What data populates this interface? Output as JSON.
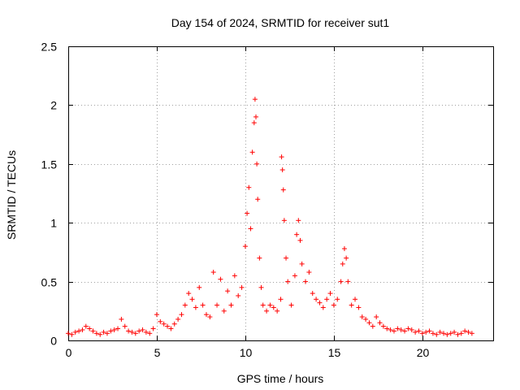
{
  "chart_data": {
    "type": "scatter",
    "title": "Day 154 of 2024, SRMTID for receiver sut1",
    "xlabel": "GPS time / hours",
    "ylabel": "SRMTID / TECUs",
    "xlim": [
      0,
      24
    ],
    "ylim": [
      0,
      2.5
    ],
    "x_ticks": [
      0,
      5,
      10,
      15,
      20
    ],
    "x_tick_labels": [
      "0",
      "5",
      "10",
      "15",
      "20"
    ],
    "y_ticks": [
      0,
      0.5,
      1,
      1.5,
      2,
      2.5
    ],
    "y_tick_labels": [
      "0",
      "0.5",
      "1",
      "1.5",
      "2",
      "2.5"
    ],
    "grid": true,
    "marker": "+",
    "color": "#ff0000",
    "series": [
      {
        "name": "SRMTID",
        "x": [
          0.0,
          0.2,
          0.4,
          0.6,
          0.8,
          1.0,
          1.2,
          1.4,
          1.6,
          1.8,
          2.0,
          2.2,
          2.4,
          2.6,
          2.8,
          3.0,
          3.2,
          3.4,
          3.6,
          3.8,
          4.0,
          4.2,
          4.4,
          4.6,
          4.8,
          5.0,
          5.2,
          5.4,
          5.6,
          5.8,
          6.0,
          6.2,
          6.4,
          6.6,
          6.8,
          7.0,
          7.2,
          7.4,
          7.6,
          7.8,
          8.0,
          8.2,
          8.4,
          8.6,
          8.8,
          9.0,
          9.2,
          9.4,
          9.6,
          9.8,
          10.0,
          10.1,
          10.2,
          10.3,
          10.4,
          10.5,
          10.55,
          10.6,
          10.65,
          10.7,
          10.8,
          10.9,
          11.0,
          11.2,
          11.4,
          11.6,
          11.8,
          12.0,
          12.05,
          12.1,
          12.15,
          12.2,
          12.3,
          12.4,
          12.6,
          12.8,
          12.9,
          13.0,
          13.1,
          13.2,
          13.4,
          13.6,
          13.8,
          14.0,
          14.2,
          14.4,
          14.6,
          14.8,
          15.0,
          15.2,
          15.4,
          15.5,
          15.6,
          15.7,
          15.8,
          16.0,
          16.2,
          16.4,
          16.6,
          16.8,
          17.0,
          17.2,
          17.4,
          17.6,
          17.8,
          18.0,
          18.2,
          18.4,
          18.6,
          18.8,
          19.0,
          19.2,
          19.4,
          19.6,
          19.8,
          20.0,
          20.2,
          20.4,
          20.6,
          20.8,
          21.0,
          21.2,
          21.4,
          21.6,
          21.8,
          22.0,
          22.2,
          22.4,
          22.6,
          22.8
        ],
        "y": [
          0.06,
          0.05,
          0.07,
          0.08,
          0.09,
          0.12,
          0.1,
          0.08,
          0.06,
          0.05,
          0.07,
          0.06,
          0.08,
          0.09,
          0.1,
          0.18,
          0.12,
          0.08,
          0.07,
          0.06,
          0.08,
          0.09,
          0.07,
          0.06,
          0.1,
          0.22,
          0.16,
          0.14,
          0.12,
          0.1,
          0.14,
          0.18,
          0.22,
          0.3,
          0.4,
          0.35,
          0.28,
          0.45,
          0.3,
          0.22,
          0.2,
          0.58,
          0.3,
          0.52,
          0.25,
          0.42,
          0.3,
          0.55,
          0.38,
          0.45,
          0.8,
          1.08,
          1.3,
          0.95,
          1.6,
          1.85,
          2.05,
          1.9,
          1.5,
          1.2,
          0.7,
          0.45,
          0.3,
          0.25,
          0.3,
          0.28,
          0.25,
          0.35,
          1.56,
          1.45,
          1.28,
          1.02,
          0.7,
          0.5,
          0.3,
          0.55,
          0.9,
          1.02,
          0.85,
          0.65,
          0.5,
          0.58,
          0.4,
          0.35,
          0.32,
          0.28,
          0.35,
          0.4,
          0.3,
          0.35,
          0.5,
          0.65,
          0.78,
          0.7,
          0.5,
          0.3,
          0.35,
          0.28,
          0.2,
          0.18,
          0.15,
          0.12,
          0.2,
          0.15,
          0.12,
          0.1,
          0.09,
          0.08,
          0.1,
          0.09,
          0.08,
          0.1,
          0.09,
          0.07,
          0.08,
          0.06,
          0.07,
          0.08,
          0.06,
          0.05,
          0.07,
          0.06,
          0.05,
          0.06,
          0.07,
          0.05,
          0.06,
          0.08,
          0.07,
          0.06
        ]
      }
    ]
  }
}
